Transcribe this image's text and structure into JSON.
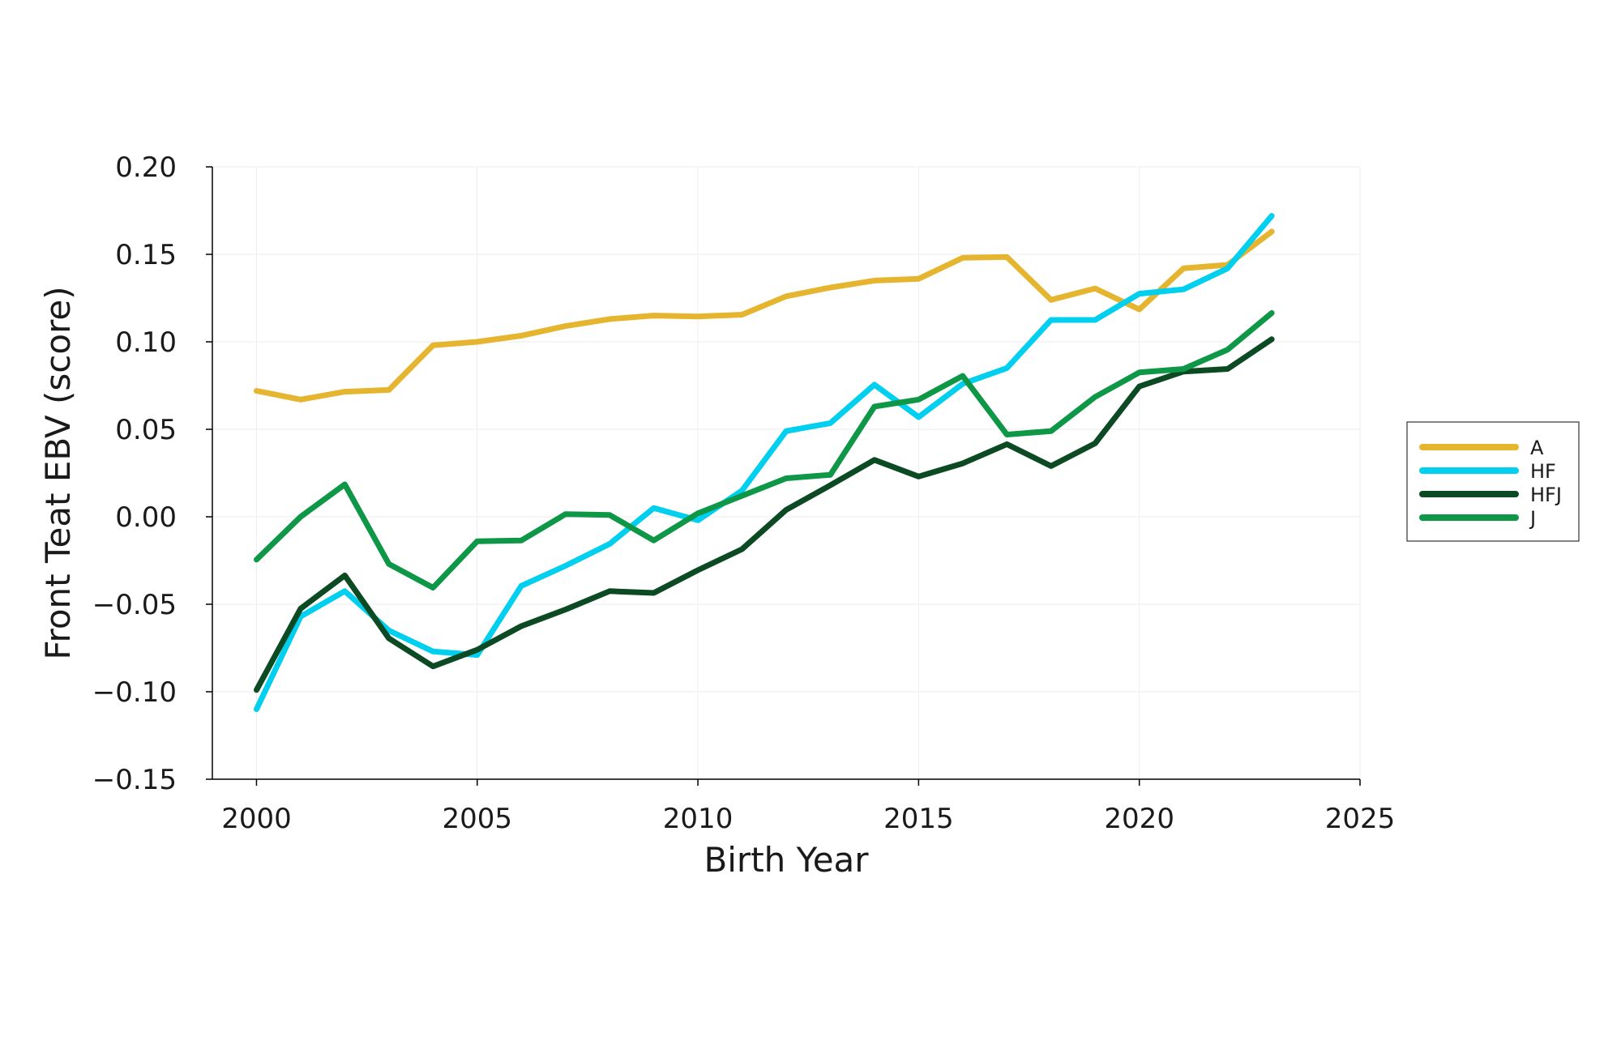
{
  "chart_data": {
    "type": "line",
    "title": "",
    "xlabel": "Birth Year",
    "ylabel": "Front Teat EBV (score)",
    "xlim": [
      1999,
      2025
    ],
    "ylim": [
      -0.15,
      0.2
    ],
    "xticks": [
      2000,
      2005,
      2010,
      2015,
      2020,
      2025
    ],
    "xtick_labels": [
      "2000",
      "2005",
      "2010",
      "2015",
      "2020",
      "2025"
    ],
    "yticks": [
      -0.15,
      -0.1,
      -0.05,
      0.0,
      0.05,
      0.1,
      0.15,
      0.2
    ],
    "ytick_labels": [
      "−0.15",
      "−0.10",
      "−0.05",
      "0.00",
      "0.05",
      "0.10",
      "0.15",
      "0.20"
    ],
    "grid": true,
    "legend_position": "right",
    "x": [
      2000,
      2001,
      2002,
      2003,
      2004,
      2005,
      2006,
      2007,
      2008,
      2009,
      2010,
      2011,
      2012,
      2013,
      2014,
      2015,
      2016,
      2017,
      2018,
      2019,
      2020,
      2021,
      2022,
      2023
    ],
    "series": [
      {
        "name": "A",
        "color": "#E6B530",
        "values": [
          0.072,
          0.067,
          0.0715,
          0.0725,
          0.098,
          0.1,
          0.1035,
          0.109,
          0.113,
          0.115,
          0.1145,
          0.1155,
          0.126,
          0.131,
          0.135,
          0.136,
          0.148,
          0.1485,
          0.124,
          0.1305,
          0.1185,
          0.142,
          0.144,
          0.163
        ]
      },
      {
        "name": "HF",
        "color": "#00CFEF",
        "values": [
          -0.11,
          -0.057,
          -0.0425,
          -0.065,
          -0.077,
          -0.079,
          -0.0395,
          -0.028,
          -0.0155,
          0.005,
          -0.002,
          0.015,
          0.049,
          0.0535,
          0.0755,
          0.057,
          0.076,
          0.085,
          0.1125,
          0.1125,
          0.1275,
          0.13,
          0.142,
          0.172
        ]
      },
      {
        "name": "HFJ",
        "color": "#0B4A23",
        "values": [
          -0.099,
          -0.0525,
          -0.0335,
          -0.0695,
          -0.0855,
          -0.076,
          -0.0625,
          -0.053,
          -0.0425,
          -0.0435,
          -0.0305,
          -0.0185,
          0.004,
          0.018,
          0.0325,
          0.023,
          0.0305,
          0.0415,
          0.029,
          0.042,
          0.0745,
          0.083,
          0.0845,
          0.1015
        ]
      },
      {
        "name": "J",
        "color": "#0D9747",
        "values": [
          -0.0245,
          0.0,
          0.0185,
          -0.027,
          -0.0405,
          -0.014,
          -0.0135,
          0.0015,
          0.001,
          -0.0135,
          0.002,
          0.012,
          0.022,
          0.024,
          0.063,
          0.067,
          0.0805,
          0.047,
          0.049,
          0.0685,
          0.0825,
          0.0845,
          0.0955,
          0.1165
        ]
      }
    ]
  }
}
